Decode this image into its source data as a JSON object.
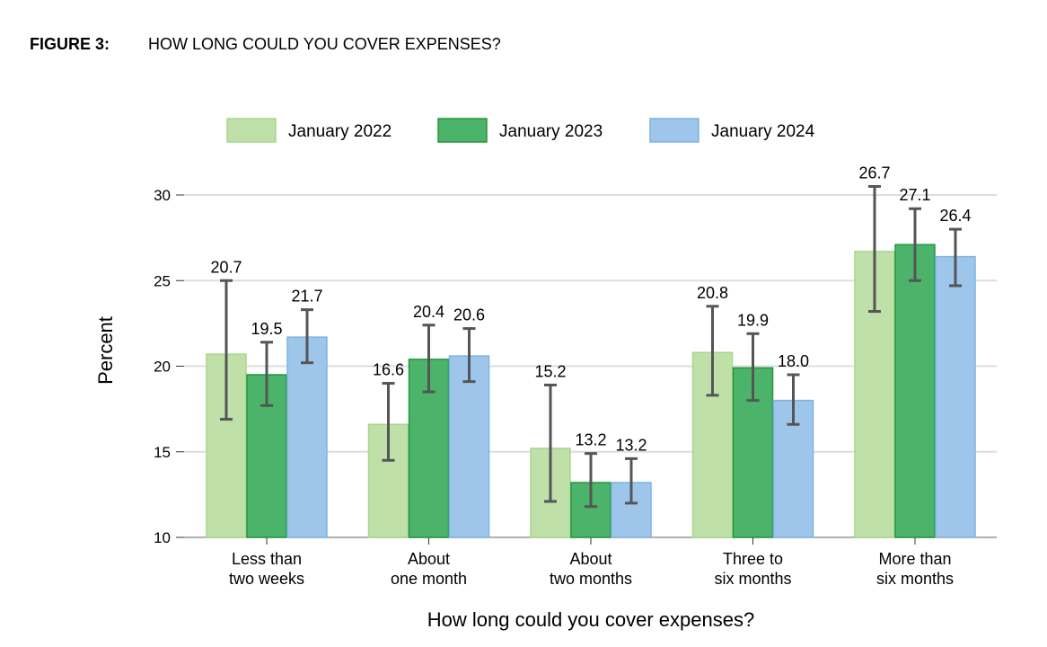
{
  "figure_label": "FIGURE 3:",
  "figure_title": "HOW LONG COULD YOU COVER EXPENSES?",
  "chart_data": {
    "type": "bar",
    "title": "HOW LONG COULD YOU COVER EXPENSES?",
    "xlabel": "How long could you cover expenses?",
    "ylabel": "Percent",
    "ylim": [
      10,
      31
    ],
    "yticks": [
      10,
      15,
      20,
      25,
      30
    ],
    "grid": true,
    "legend_position": "top",
    "categories": [
      [
        "Less than",
        "two weeks"
      ],
      [
        "About",
        "one month"
      ],
      [
        "About",
        "two months"
      ],
      [
        "Three to",
        "six months"
      ],
      [
        "More than",
        "six months"
      ]
    ],
    "series": [
      {
        "name": "January 2022",
        "color": "#bfe0a9",
        "stroke": "#a8d68c",
        "values": [
          20.7,
          16.6,
          15.2,
          20.8,
          26.7
        ],
        "err_low": [
          16.9,
          14.5,
          12.1,
          18.3,
          23.2
        ],
        "err_high": [
          25.0,
          19.0,
          18.9,
          23.5,
          30.5
        ]
      },
      {
        "name": "January 2023",
        "color": "#4cb46a",
        "stroke": "#23963f",
        "values": [
          19.5,
          20.4,
          13.2,
          19.9,
          27.1
        ],
        "err_low": [
          17.7,
          18.5,
          11.8,
          18.0,
          25.0
        ],
        "err_high": [
          21.4,
          22.4,
          14.9,
          21.9,
          29.2
        ]
      },
      {
        "name": "January 2024",
        "color": "#9dc6ea",
        "stroke": "#7fb3e2",
        "values": [
          21.7,
          20.6,
          13.2,
          18.0,
          26.4
        ],
        "err_low": [
          20.2,
          19.1,
          12.0,
          16.6,
          24.7
        ],
        "err_high": [
          23.3,
          22.2,
          14.6,
          19.5,
          28.0
        ]
      }
    ]
  }
}
